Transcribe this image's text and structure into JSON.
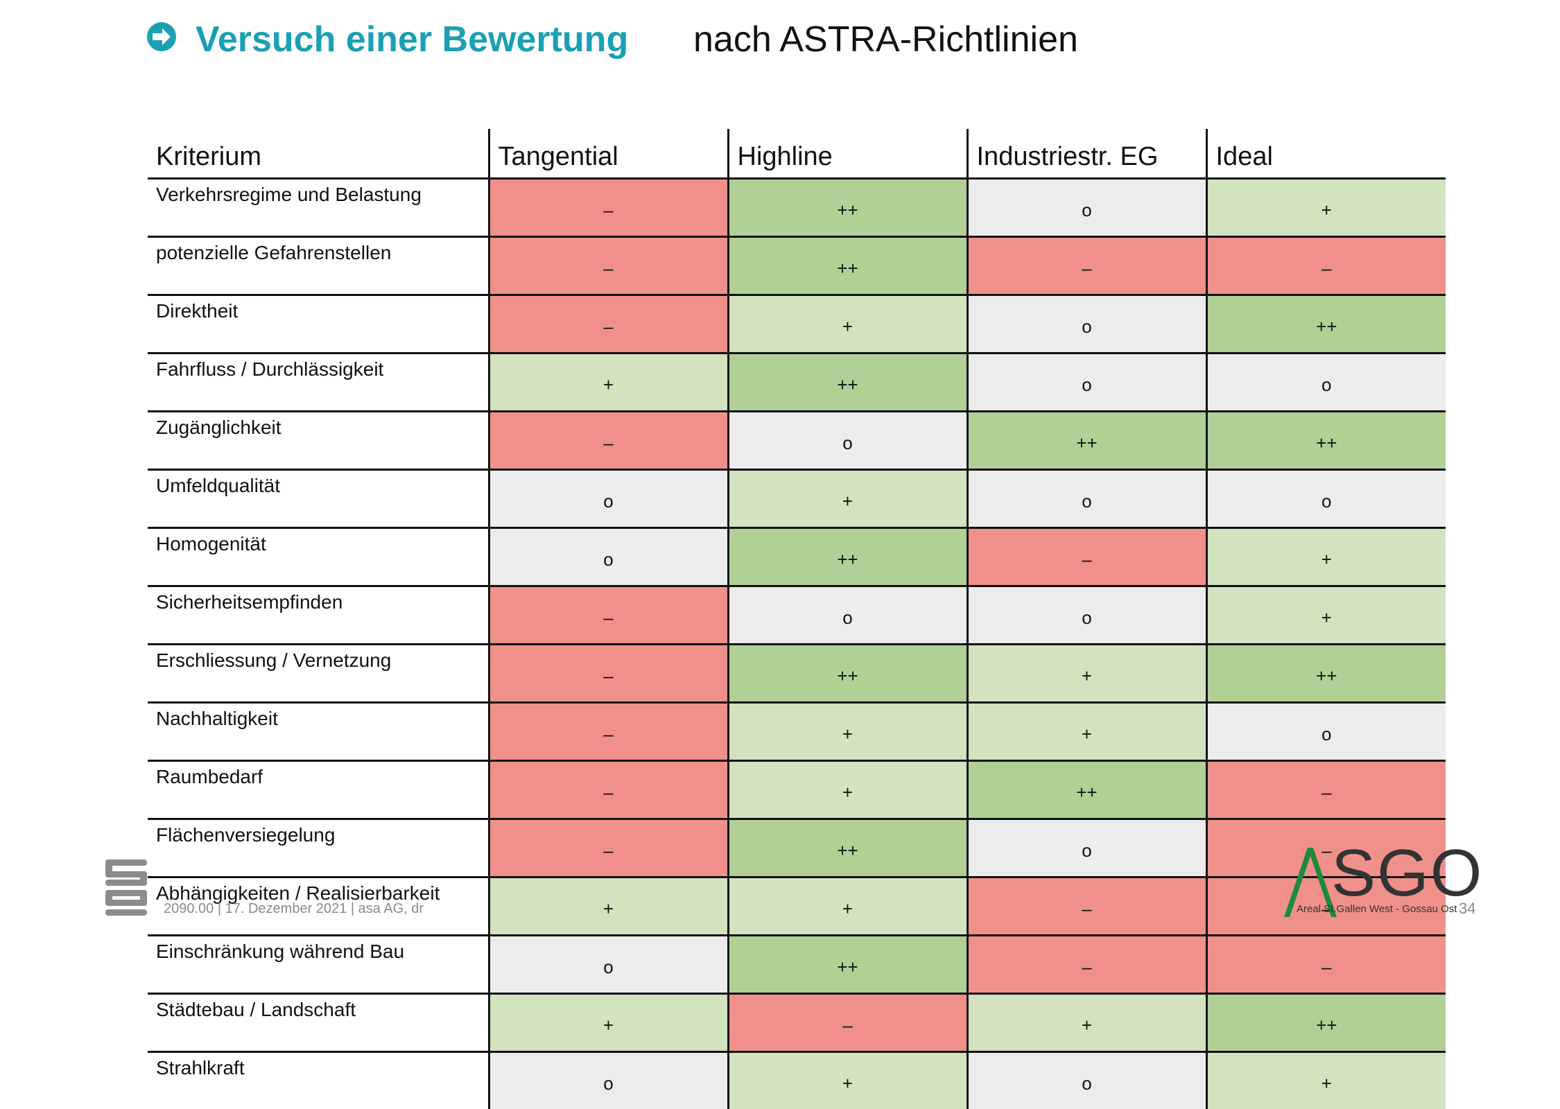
{
  "title": {
    "main": "Versuch einer Bewertung",
    "sub": "nach ASTRA-Richtlinien",
    "arrow_color": "#1aa0b4"
  },
  "table": {
    "headers": [
      "Kriterium",
      "Tangential",
      "Highline",
      "Industriestr. EG",
      "Ideal"
    ],
    "colors": {
      "--": "#f0908a",
      "–": "#f0908a",
      "o": "#ececec",
      "+": "#d3e2bf",
      "++": "#b2d095"
    },
    "rows": [
      {
        "label": "Verkehrsregime und Belastung",
        "values": [
          "–",
          "++",
          "o",
          "+"
        ]
      },
      {
        "label": "potenzielle Gefahrenstellen",
        "values": [
          "–",
          "++",
          "–",
          "–"
        ]
      },
      {
        "label": "Direktheit",
        "values": [
          "–",
          "+",
          "o",
          "++"
        ]
      },
      {
        "label": "Fahrfluss / Durchlässigkeit",
        "values": [
          "+",
          "++",
          "o",
          "o"
        ]
      },
      {
        "label": "Zugänglichkeit",
        "values": [
          "–",
          "o",
          "++",
          "++"
        ]
      },
      {
        "label": "Umfeldqualität",
        "values": [
          "o",
          "+",
          "o",
          "o"
        ]
      },
      {
        "label": "Homogenität",
        "values": [
          "o",
          "++",
          "–",
          "+"
        ]
      },
      {
        "label": "Sicherheitsempfinden",
        "values": [
          "–",
          "o",
          "o",
          "+"
        ]
      },
      {
        "label": "Erschliessung / Vernetzung",
        "values": [
          "–",
          "++",
          "+",
          "++"
        ]
      },
      {
        "label": "Nachhaltigkeit",
        "values": [
          "–",
          "+",
          "+",
          "o"
        ]
      },
      {
        "label": "Raumbedarf",
        "values": [
          "–",
          "+",
          "++",
          "–"
        ]
      },
      {
        "label": "Flächenversiegelung",
        "values": [
          "–",
          "++",
          "o",
          "–"
        ]
      },
      {
        "label": "Abhängigkeiten / Realisierbarkeit",
        "values": [
          "+",
          "+",
          "–",
          "–"
        ]
      },
      {
        "label": "Einschränkung während Bau",
        "values": [
          "o",
          "++",
          "–",
          "–"
        ]
      },
      {
        "label": "Städtebau / Landschaft",
        "values": [
          "+",
          "–",
          "+",
          "++"
        ]
      },
      {
        "label": "Strahlkraft",
        "values": [
          "o",
          "+",
          "o",
          "+"
        ]
      }
    ]
  },
  "footer": {
    "text": "2090.00 | 17. Dezember 2021 | asa AG, dr",
    "logo_name": "asa-logo",
    "brand_word": "SGO",
    "brand_caption": "Areal St.Gallen West - Gossau Ost",
    "brand_color": "#1e8a3a",
    "page_number": "34"
  }
}
